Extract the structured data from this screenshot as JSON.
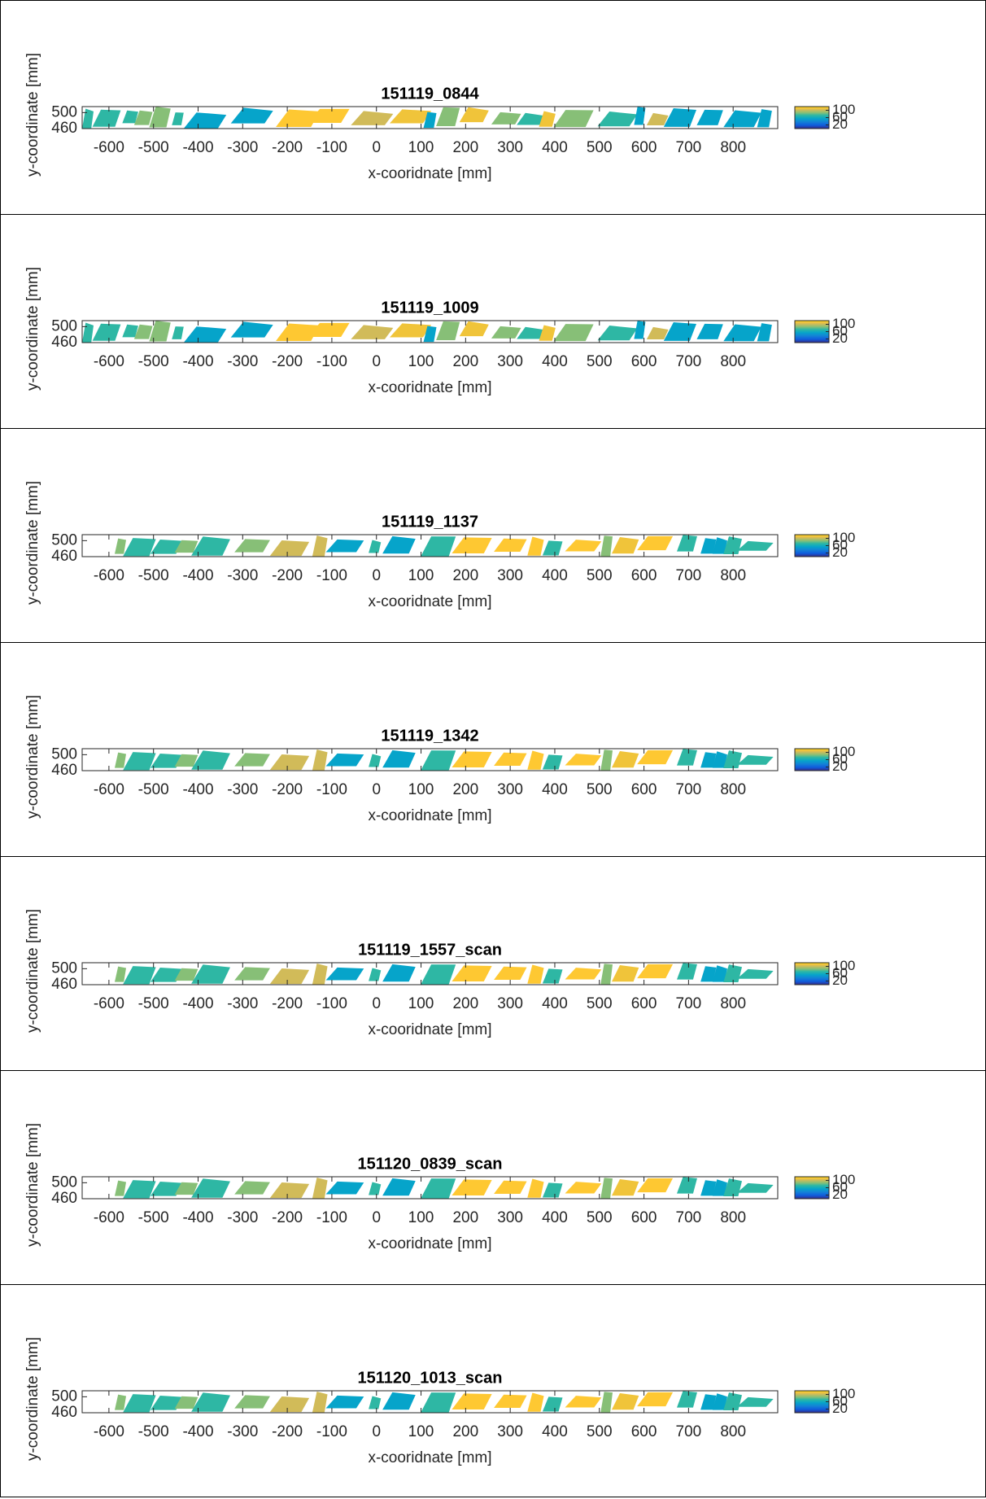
{
  "chart_data": [
    {
      "type": "image",
      "title": "151119_0844",
      "xlabel": "x-cooridnate [mm]",
      "ylabel": "y-coordinate [mm]",
      "xlim": [
        -660,
        900
      ],
      "xticks": [
        -600,
        -500,
        -400,
        -300,
        -200,
        -100,
        0,
        100,
        200,
        300,
        400,
        500,
        600,
        700,
        800
      ],
      "ylim": [
        460,
        515
      ],
      "yticks": [
        460,
        500
      ],
      "clim": [
        0,
        120
      ],
      "cticks": [
        20,
        60,
        100
      ]
    },
    {
      "type": "image",
      "title": "151119_1009",
      "xlabel": "x-cooridnate [mm]",
      "ylabel": "y-coordinate [mm]",
      "xlim": [
        -660,
        900
      ],
      "xticks": [
        -600,
        -500,
        -400,
        -300,
        -200,
        -100,
        0,
        100,
        200,
        300,
        400,
        500,
        600,
        700,
        800
      ],
      "ylim": [
        460,
        515
      ],
      "yticks": [
        460,
        500
      ],
      "clim": [
        0,
        120
      ],
      "cticks": [
        20,
        60,
        100
      ]
    },
    {
      "type": "image",
      "title": "151119_1137",
      "xlabel": "x-cooridnate [mm]",
      "ylabel": "y-coordinate [mm]",
      "xlim": [
        -660,
        900
      ],
      "xticks": [
        -600,
        -500,
        -400,
        -300,
        -200,
        -100,
        0,
        100,
        200,
        300,
        400,
        500,
        600,
        700,
        800
      ],
      "ylim": [
        460,
        515
      ],
      "yticks": [
        460,
        500
      ],
      "clim": [
        0,
        120
      ],
      "cticks": [
        20,
        60,
        100
      ]
    },
    {
      "type": "image",
      "title": "151119_1342",
      "xlabel": "x-cooridnate [mm]",
      "ylabel": "y-coordinate [mm]",
      "xlim": [
        -660,
        900
      ],
      "xticks": [
        -600,
        -500,
        -400,
        -300,
        -200,
        -100,
        0,
        100,
        200,
        300,
        400,
        500,
        600,
        700,
        800
      ],
      "ylim": [
        460,
        515
      ],
      "yticks": [
        460,
        500
      ],
      "clim": [
        0,
        120
      ],
      "cticks": [
        20,
        60,
        100
      ]
    },
    {
      "type": "image",
      "title": "151119_1557_scan",
      "xlabel": "x-cooridnate [mm]",
      "ylabel": "y-coordinate [mm]",
      "xlim": [
        -660,
        900
      ],
      "xticks": [
        -600,
        -500,
        -400,
        -300,
        -200,
        -100,
        0,
        100,
        200,
        300,
        400,
        500,
        600,
        700,
        800
      ],
      "ylim": [
        460,
        515
      ],
      "yticks": [
        460,
        500
      ],
      "clim": [
        0,
        120
      ],
      "cticks": [
        20,
        60,
        100
      ]
    },
    {
      "type": "image",
      "title": "151120_0839_scan",
      "xlabel": "x-cooridnate [mm]",
      "ylabel": "y-coordinate [mm]",
      "xlim": [
        -660,
        900
      ],
      "xticks": [
        -600,
        -500,
        -400,
        -300,
        -200,
        -100,
        0,
        100,
        200,
        300,
        400,
        500,
        600,
        700,
        800
      ],
      "ylim": [
        460,
        515
      ],
      "yticks": [
        460,
        500
      ],
      "clim": [
        0,
        120
      ],
      "cticks": [
        20,
        60,
        100
      ]
    },
    {
      "type": "image",
      "title": "151120_1013_scan",
      "xlabel": "x-cooridnate [mm]",
      "ylabel": "y-coordinate [mm]",
      "xlim": [
        -660,
        900
      ],
      "xticks": [
        -600,
        -500,
        -400,
        -300,
        -200,
        -100,
        0,
        100,
        200,
        300,
        400,
        500,
        600,
        700,
        800
      ],
      "ylim": [
        460,
        515
      ],
      "yticks": [
        460,
        500
      ],
      "clim": [
        0,
        120
      ],
      "cticks": [
        20,
        60,
        100
      ]
    }
  ]
}
